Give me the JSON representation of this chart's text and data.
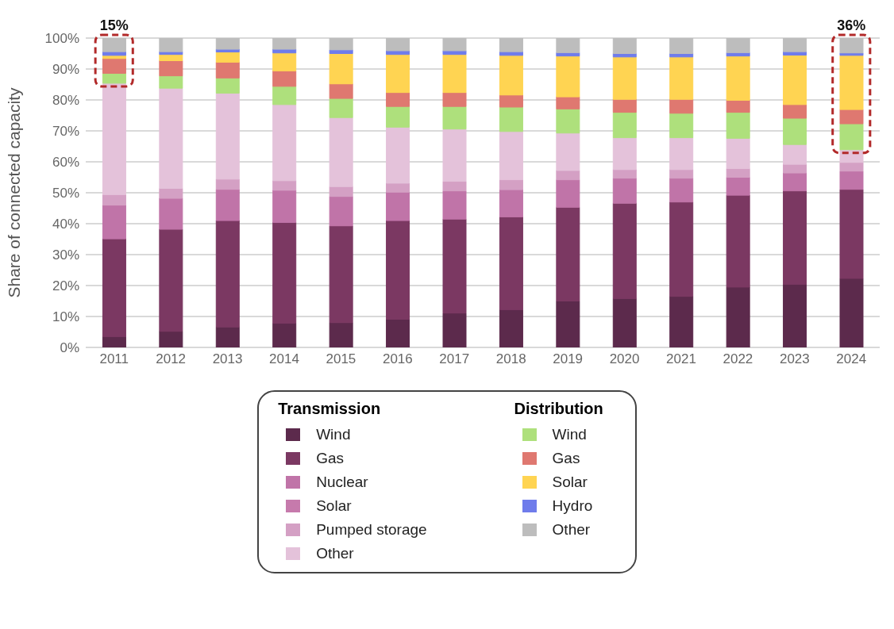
{
  "chart_data": {
    "type": "bar",
    "stacked": true,
    "ylabel": "Share of connected capacity",
    "legend": "bottom",
    "grid": "y",
    "legend_title": [
      "Transmission",
      "Distribution"
    ],
    "categories": [
      "2011",
      "2012",
      "2013",
      "2014",
      "2015",
      "2016",
      "2017",
      "2018",
      "2019",
      "2020",
      "2021",
      "2022",
      "2023",
      "2024"
    ],
    "ylim": [
      0,
      100
    ],
    "yticks": [
      {
        "value": 0,
        "label": "0%"
      },
      {
        "value": 10,
        "label": "10%"
      },
      {
        "value": 20,
        "label": "20%"
      },
      {
        "value": 30,
        "label": "30%"
      },
      {
        "value": 40,
        "label": "40%"
      },
      {
        "value": 50,
        "label": "50%"
      },
      {
        "value": 60,
        "label": "60%"
      },
      {
        "value": 70,
        "label": "70%"
      },
      {
        "value": 80,
        "label": "80%"
      },
      {
        "value": 90,
        "label": "90%"
      },
      {
        "value": 100,
        "label": "100%"
      }
    ],
    "series": [
      {
        "name": "Wind",
        "color": "#5c2a4c",
        "values": [
          3.5,
          5.2,
          6.6,
          7.8,
          8,
          9.1,
          11.1,
          12.2,
          15,
          15.8,
          16.5,
          19.5,
          20.4,
          22.3
        ]
      },
      {
        "name": "Gas",
        "color": "#7b3862",
        "values": [
          31.6,
          33,
          34.4,
          32.6,
          31.3,
          31.9,
          30.4,
          30,
          30.3,
          30.8,
          30.5,
          29.7,
          30.2,
          28.8
        ]
      },
      {
        "name": "Nuclear",
        "color": "#c074a8",
        "values": [
          10.9,
          10,
          10.1,
          10.4,
          9.5,
          9.2,
          9.1,
          8.8,
          8.9,
          8.1,
          7.7,
          5.8,
          5.8,
          5.9
        ]
      },
      {
        "name": "Solar",
        "color": "#c67aac",
        "values": [
          0,
          0,
          0,
          0,
          0,
          0,
          0,
          0,
          0,
          0,
          0,
          0,
          0,
          0
        ]
      },
      {
        "name": "Pumped storage",
        "color": "#d4a0c4",
        "values": [
          3.4,
          3.2,
          3.3,
          3.1,
          3.2,
          2.9,
          3.1,
          3.2,
          3,
          2.8,
          2.8,
          2.8,
          2.8,
          2.8
        ]
      },
      {
        "name": "Other",
        "color": "#e4c2da",
        "values": [
          36,
          32.4,
          27.8,
          24.6,
          22.3,
          18.1,
          16.9,
          15.6,
          12.1,
          10.3,
          10.3,
          9.8,
          6.4,
          4.1
        ]
      },
      {
        "name": "Wind",
        "color": "#aee07c",
        "values": [
          3.2,
          4,
          4.9,
          5.9,
          6.2,
          6.7,
          7.3,
          7.9,
          7.8,
          8.2,
          7.9,
          8.4,
          8.5,
          8.4
        ]
      },
      {
        "name": "Gas",
        "color": "#df7870",
        "values": [
          4.8,
          4.9,
          5.1,
          5,
          4.7,
          4.5,
          4.5,
          3.9,
          3.9,
          4.2,
          4.5,
          3.9,
          4.4,
          4.6
        ]
      },
      {
        "name": "Solar",
        "color": "#ffd452",
        "values": [
          1,
          2,
          3.3,
          5.8,
          9.8,
          12.3,
          12.3,
          12.8,
          13.2,
          13.7,
          13.7,
          14.3,
          16,
          17.5
        ]
      },
      {
        "name": "Hydro",
        "color": "#6f7ceb",
        "values": [
          1.2,
          0.9,
          0.9,
          1.2,
          1.2,
          1.2,
          1.2,
          1.2,
          1.1,
          1.1,
          1.1,
          1.1,
          1.1,
          0.8
        ]
      },
      {
        "name": "Other",
        "color": "#bdbdbd",
        "values": [
          4.4,
          4.4,
          3.6,
          3.6,
          3.8,
          4.1,
          4.1,
          4.4,
          4.7,
          5,
          5,
          4.7,
          4.4,
          4.8
        ]
      }
    ],
    "annotations": [
      {
        "text": "15%",
        "x": "2011",
        "y": 100
      },
      {
        "text": "36%",
        "x": "2024",
        "y": 100
      }
    ]
  }
}
